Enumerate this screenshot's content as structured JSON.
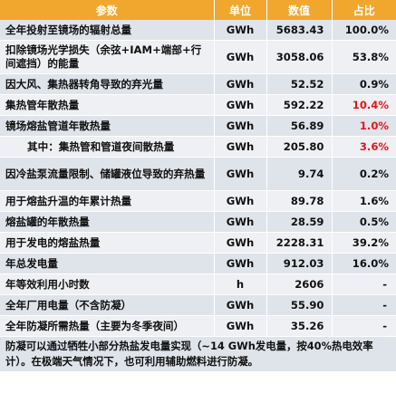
{
  "header": {
    "param": "参数",
    "unit": "单位",
    "value": "数值",
    "share": "占比"
  },
  "rows": [
    {
      "param": "全年投射至镜场的辐射总量",
      "unit": "GWh",
      "value": "5683.43",
      "share": "100.0%"
    },
    {
      "param": "扣除镜场光学损失（余弦+IAM+端部+行间遮挡）的能量",
      "unit": "GWh",
      "value": "3058.06",
      "share": "53.8%"
    },
    {
      "param": "因大风、集热器转角导致的弃光量",
      "unit": "GWh",
      "value": "52.52",
      "share": "0.9%"
    },
    {
      "param": "集热管年散热量",
      "unit": "GWh",
      "value": "592.22",
      "share": "10.4%"
    },
    {
      "param": "镜场熔盐管道年散热量",
      "unit": "GWh",
      "value": "56.89",
      "share": "1.0%"
    },
    {
      "param": "其中：集热管和管道夜间散热量",
      "unit": "GWh",
      "value": "205.80",
      "share": "3.6%"
    },
    {
      "param": "因冷盐泵流量限制、储罐液位导致的弃热量",
      "unit": "GWh",
      "value": "9.74",
      "share": "0.2%"
    },
    {
      "param": "用于熔盐升温的年累计热量",
      "unit": "GWh",
      "value": "89.78",
      "share": "1.6%"
    },
    {
      "param": "熔盐罐的年散热量",
      "unit": "GWh",
      "value": "28.59",
      "share": "0.5%"
    },
    {
      "param": "用于发电的熔盐热量",
      "unit": "GWh",
      "value": "2228.31",
      "share": "39.2%"
    },
    {
      "param": "年总发电量",
      "unit": "GWh",
      "value": "912.03",
      "share": "16.0%"
    },
    {
      "param": "年等效利用小时数",
      "unit": "h",
      "value": "2606",
      "share": "-"
    },
    {
      "param": "全年厂用电量（不含防凝）",
      "unit": "GWh",
      "value": "55.90",
      "share": "-"
    },
    {
      "param": "全年防凝所需热量（主要为冬季夜间）",
      "unit": "GWh",
      "value": "35.26",
      "share": "-"
    }
  ],
  "note": "防凝可以通过牺牲小部分热盐发电量实现（~14 GWh发电量，按40%热电效率计）。在极端天气情况下，也可利用辅助燃料进行防凝。",
  "colors": {
    "header_bg": "#f1a62e",
    "row_bg_a": "#dfe3ea",
    "row_bg_b": "#eef0f3",
    "highlight": "#e8131b"
  }
}
